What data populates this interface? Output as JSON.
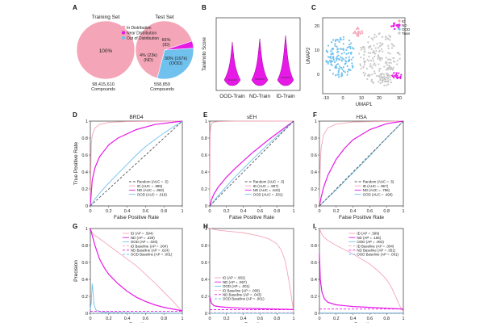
{
  "figure": {
    "panel_letters": [
      "A",
      "B",
      "C",
      "D",
      "E",
      "F",
      "G",
      "H",
      "I"
    ],
    "colors": {
      "id": "#f4a6b8",
      "nd": "#e619e6",
      "ood": "#70c1ee",
      "train": "#c8c8c8",
      "random": "#555555"
    }
  },
  "chart_data": [
    {
      "panel": "A",
      "type": "pie",
      "pies": [
        {
          "title": "Training Set",
          "label": "100%",
          "caption": "98,415,610",
          "caption2": "Compounds",
          "slices": [
            {
              "name": "In Distribution",
              "value": 100
            }
          ]
        },
        {
          "title": "Test Set",
          "caption": "558,859",
          "caption2": "Compounds",
          "slices": [
            {
              "name": "In Distribution",
              "value": 66,
              "label1": "66%",
              "label2": "(ID)"
            },
            {
              "name": "Near Distribution",
              "value": 4,
              "label1": "4% (23k)",
              "label2": "(ND)"
            },
            {
              "name": "Out of Distribution",
              "value": 30,
              "label1": "30% (167k)",
              "label2": "(OOD)"
            }
          ]
        }
      ],
      "legend": [
        "In Distribution",
        "Near Distribution",
        "Out of Distribution"
      ]
    },
    {
      "panel": "B",
      "type": "violin",
      "ylabel": "Tanimoto Score",
      "categories": [
        "OOD-Train",
        "ND-Train",
        "ID-Train"
      ],
      "medians": [
        0.13,
        0.14,
        0.16
      ]
    },
    {
      "panel": "C",
      "type": "scatter",
      "xlabel": "UMAP1",
      "ylabel": "UMAP2",
      "xticks": [
        "-10",
        "0",
        "10",
        "20",
        "30"
      ],
      "yticks": [
        "20",
        "10",
        "0"
      ],
      "legend": [
        "ID",
        "ND",
        "OOD",
        "Train"
      ]
    },
    {
      "panel": "D",
      "type": "line",
      "title": "BRD4",
      "xlabel": "False Positive Rate",
      "ylabel": "True Positive Rate",
      "xticks": [
        "0",
        "0.2",
        "0.4",
        "0.6",
        "0.8",
        "1"
      ],
      "yticks": [
        "0",
        "0.2",
        "0.4",
        "0.6",
        "0.8",
        "1"
      ],
      "xlim": [
        0,
        1
      ],
      "ylim": [
        0,
        1
      ],
      "legend": [
        "Random (AUC = .5)",
        "ID (AUC = .985)",
        "ND (AUC = .863)",
        "OOD (AUC = .619)"
      ],
      "series": [
        {
          "x": [
            0,
            0.01,
            0.02,
            0.05,
            0.1,
            0.2,
            0.4,
            1
          ],
          "y": [
            0,
            0.72,
            0.83,
            0.92,
            0.96,
            0.985,
            0.995,
            1
          ]
        },
        {
          "x": [
            0,
            0.02,
            0.05,
            0.1,
            0.2,
            0.3,
            0.5,
            0.7,
            1
          ],
          "y": [
            0,
            0.3,
            0.45,
            0.58,
            0.72,
            0.8,
            0.9,
            0.96,
            1
          ]
        },
        {
          "x": [
            0,
            0.05,
            0.1,
            0.2,
            0.3,
            0.4,
            0.5,
            0.6,
            0.8,
            1
          ],
          "y": [
            0,
            0.08,
            0.15,
            0.27,
            0.38,
            0.49,
            0.6,
            0.7,
            0.86,
            1
          ]
        },
        {
          "x": [
            0,
            1
          ],
          "y": [
            0,
            1
          ]
        }
      ]
    },
    {
      "panel": "E",
      "type": "line",
      "title": "sEH",
      "xlabel": "False Positive Rate",
      "xticks": [
        "0",
        "0.2",
        "0.4",
        "0.6",
        "0.8",
        "1"
      ],
      "yticks": [
        "0",
        "0.2",
        "0.4",
        "0.6",
        "0.8",
        "1"
      ],
      "xlim": [
        0,
        1
      ],
      "ylim": [
        0,
        1
      ],
      "legend": [
        "Random (AUC = .5)",
        "ID (AUC = .997)",
        "ND (AUC = .643)",
        "OOD (AUC = .531)"
      ],
      "series": [
        {
          "x": [
            0,
            0.005,
            0.01,
            0.03,
            0.06,
            0.1,
            0.3,
            1
          ],
          "y": [
            0,
            0.85,
            0.93,
            0.98,
            0.99,
            0.995,
            0.999,
            1
          ]
        },
        {
          "x": [
            0,
            0.02,
            0.05,
            0.1,
            0.2,
            0.3,
            0.5,
            0.7,
            1
          ],
          "y": [
            0,
            0.07,
            0.14,
            0.22,
            0.34,
            0.44,
            0.62,
            0.78,
            1
          ]
        },
        {
          "x": [
            0,
            0.1,
            0.2,
            0.3,
            0.5,
            0.7,
            0.9,
            1
          ],
          "y": [
            0,
            0.12,
            0.23,
            0.34,
            0.54,
            0.73,
            0.91,
            1
          ]
        },
        {
          "x": [
            0,
            1
          ],
          "y": [
            0,
            1
          ]
        }
      ]
    },
    {
      "panel": "F",
      "type": "line",
      "title": "HSA",
      "xlabel": "False Positive Rate",
      "xticks": [
        "0",
        "0.2",
        "0.4",
        "0.6",
        "0.8",
        "1"
      ],
      "yticks": [
        "0",
        "0.2",
        "0.4",
        "0.6",
        "0.8",
        "1"
      ],
      "xlim": [
        0,
        1
      ],
      "ylim": [
        0,
        1
      ],
      "legend": [
        "Random (AUC = .5)",
        "ID (AUC = .967)",
        "ND (AUC = .786)",
        "OOD (AUC = .496)"
      ],
      "series": [
        {
          "x": [
            0,
            0.01,
            0.02,
            0.05,
            0.1,
            0.2,
            0.4,
            1
          ],
          "y": [
            0,
            0.5,
            0.68,
            0.84,
            0.92,
            0.965,
            0.99,
            1
          ]
        },
        {
          "x": [
            0,
            0.02,
            0.05,
            0.1,
            0.2,
            0.3,
            0.4,
            0.6,
            0.8,
            1
          ],
          "y": [
            0,
            0.1,
            0.22,
            0.36,
            0.55,
            0.68,
            0.78,
            0.9,
            0.97,
            1
          ]
        },
        {
          "x": [
            0,
            0.2,
            0.4,
            0.6,
            0.8,
            1
          ],
          "y": [
            0,
            0.19,
            0.39,
            0.59,
            0.8,
            1
          ]
        },
        {
          "x": [
            0,
            1
          ],
          "y": [
            0,
            1
          ]
        }
      ]
    },
    {
      "panel": "G",
      "type": "line",
      "xlabel": "Recall",
      "ylabel": "Precision",
      "xticks": [
        "0",
        "0.2",
        "0.4",
        "0.6",
        "0.8",
        "1"
      ],
      "yticks": [
        "0",
        "0.2",
        "0.4",
        "0.6",
        "0.8",
        "1"
      ],
      "xlim": [
        0,
        1
      ],
      "ylim": [
        0,
        1
      ],
      "legend": [
        "ID (AP = .594)",
        "ND (AP = .329)",
        "OOD (AP = .020)",
        "ID Baseline (AP = .004)",
        "ND Baseline (AP = .024)",
        "OOD Baseline (AP = .001)"
      ],
      "series": [
        {
          "x": [
            0,
            0.02,
            0.05,
            0.1,
            0.2,
            0.3,
            0.4,
            0.5,
            0.6,
            0.7,
            0.8,
            0.9,
            1
          ],
          "y": [
            1,
            0.95,
            0.92,
            0.88,
            0.8,
            0.72,
            0.64,
            0.56,
            0.46,
            0.36,
            0.25,
            0.14,
            0.02
          ]
        },
        {
          "x": [
            0,
            0.02,
            0.05,
            0.1,
            0.15,
            0.2,
            0.3,
            0.4,
            0.5,
            0.6,
            0.7,
            0.8,
            0.9,
            1
          ],
          "y": [
            1,
            0.92,
            0.8,
            0.64,
            0.54,
            0.46,
            0.35,
            0.26,
            0.19,
            0.14,
            0.1,
            0.07,
            0.05,
            0.03
          ]
        },
        {
          "x": [
            0,
            0.01,
            0.02,
            0.03,
            0.04,
            0.06,
            0.1,
            0.2,
            0.5,
            1
          ],
          "y": [
            0.05,
            0.12,
            0.35,
            0.25,
            0.1,
            0.04,
            0.02,
            0.01,
            0.005,
            0.002
          ]
        },
        {
          "x": [
            0,
            1
          ],
          "y": [
            0.004,
            0.004
          ]
        },
        {
          "x": [
            0,
            1
          ],
          "y": [
            0.024,
            0.024
          ]
        },
        {
          "x": [
            0,
            1
          ],
          "y": [
            0.001,
            0.001
          ]
        }
      ]
    },
    {
      "panel": "H",
      "type": "line",
      "xlabel": "Recall",
      "xticks": [
        "0",
        "0.2",
        "0.4",
        "0.6",
        "0.8",
        "1"
      ],
      "yticks": [
        "0",
        "0.2",
        "0.4",
        "0.6",
        "0.8",
        "1"
      ],
      "xlim": [
        0,
        1
      ],
      "ylim": [
        0,
        1
      ],
      "legend": [
        "ID (AP = .902)",
        "ND (AP = .067)",
        "OOD (AP = .001)",
        "ID Baseline (AP = .009)",
        "ND Baseline (AP = .043)",
        "OOD Baseline (AP = .001)"
      ],
      "series": [
        {
          "x": [
            0,
            0.05,
            0.1,
            0.2,
            0.3,
            0.4,
            0.5,
            0.6,
            0.7,
            0.8,
            0.85,
            0.9,
            0.95,
            1
          ],
          "y": [
            1,
            0.99,
            0.98,
            0.97,
            0.96,
            0.95,
            0.93,
            0.91,
            0.88,
            0.82,
            0.75,
            0.62,
            0.35,
            0.02
          ]
        },
        {
          "x": [
            0,
            0.02,
            0.05,
            0.1,
            0.2,
            0.4,
            0.6,
            0.8,
            1
          ],
          "y": [
            0.2,
            0.12,
            0.09,
            0.08,
            0.07,
            0.06,
            0.055,
            0.05,
            0.045
          ]
        },
        {
          "x": [
            0,
            1
          ],
          "y": [
            0.001,
            0.001
          ]
        },
        {
          "x": [
            0,
            1
          ],
          "y": [
            0.009,
            0.009
          ]
        },
        {
          "x": [
            0,
            1
          ],
          "y": [
            0.043,
            0.043
          ]
        },
        {
          "x": [
            0,
            1
          ],
          "y": [
            0.001,
            0.001
          ]
        }
      ]
    },
    {
      "panel": "I",
      "type": "line",
      "xlabel": "Recall",
      "xticks": [
        "0",
        "0.2",
        "0.4",
        "0.6",
        "0.8",
        "1"
      ],
      "yticks": [
        "0",
        "0.2",
        "0.4",
        "0.6",
        "0.8",
        "1"
      ],
      "xlim": [
        0,
        1
      ],
      "ylim": [
        0,
        1
      ],
      "legend": [
        "ID (AP = .599)",
        "ND (AP = .156)",
        "OOD (AP = .004)",
        "ID Baseline (AP = .004)",
        "ND Baseline (AP = .051)",
        "OOD Baseline (AP = .001)"
      ],
      "series": [
        {
          "x": [
            0,
            0.02,
            0.05,
            0.1,
            0.2,
            0.3,
            0.4,
            0.5,
            0.6,
            0.7,
            0.8,
            0.85,
            0.9,
            0.95,
            1
          ],
          "y": [
            1,
            0.95,
            0.9,
            0.86,
            0.8,
            0.75,
            0.7,
            0.64,
            0.58,
            0.5,
            0.4,
            0.32,
            0.22,
            0.1,
            0.02
          ]
        },
        {
          "x": [
            0,
            0.01,
            0.03,
            0.06,
            0.1,
            0.2,
            0.3,
            0.4,
            0.6,
            0.8,
            1
          ],
          "y": [
            0.7,
            0.4,
            0.25,
            0.17,
            0.13,
            0.1,
            0.09,
            0.08,
            0.07,
            0.06,
            0.05
          ]
        },
        {
          "x": [
            0,
            1
          ],
          "y": [
            0.004,
            0.004
          ]
        },
        {
          "x": [
            0,
            1
          ],
          "y": [
            0.004,
            0.004
          ]
        },
        {
          "x": [
            0,
            1
          ],
          "y": [
            0.051,
            0.051
          ]
        },
        {
          "x": [
            0,
            1
          ],
          "y": [
            0.001,
            0.001
          ]
        }
      ]
    }
  ]
}
